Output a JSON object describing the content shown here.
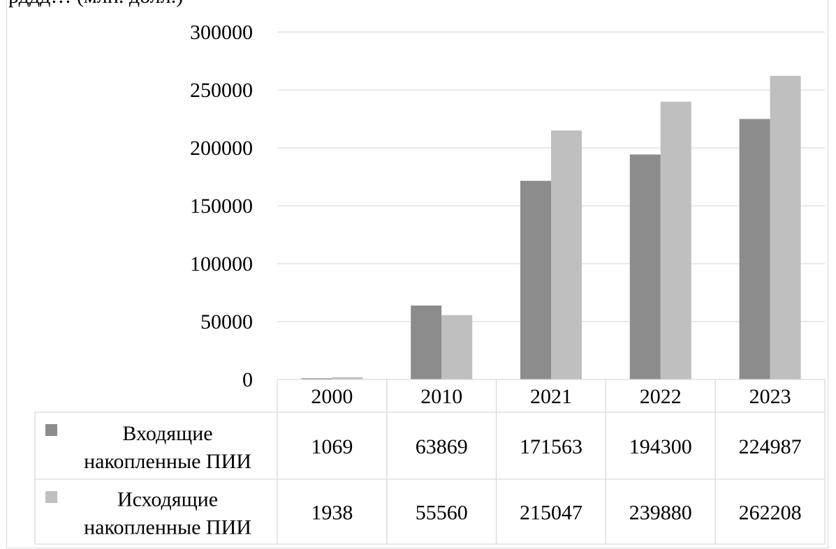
{
  "top_fragment": "рддд… (млн. долл.)",
  "chart_data": {
    "type": "bar",
    "categories": [
      "2000",
      "2010",
      "2021",
      "2022",
      "2023"
    ],
    "series": [
      {
        "name_lines": [
          "Входящие",
          "накопленные ПИИ"
        ],
        "values": [
          1069,
          63869,
          171563,
          194300,
          224987
        ],
        "color": "#8c8c8c"
      },
      {
        "name_lines": [
          "Исходящие",
          "накопленные ПИИ"
        ],
        "values": [
          1938,
          55560,
          215047,
          239880,
          262208
        ],
        "color": "#bfbfbf"
      }
    ],
    "ylim": [
      0,
      300000
    ],
    "yticks": [
      "0",
      "50000",
      "100000",
      "150000",
      "200000",
      "250000",
      "300000"
    ],
    "grid": true,
    "legend": "data-table",
    "data_table": {
      "rows": [
        [
          "1069",
          "63869",
          "171563",
          "194300",
          "224987"
        ],
        [
          "1938",
          "55560",
          "215047",
          "239880",
          "262208"
        ]
      ]
    }
  }
}
